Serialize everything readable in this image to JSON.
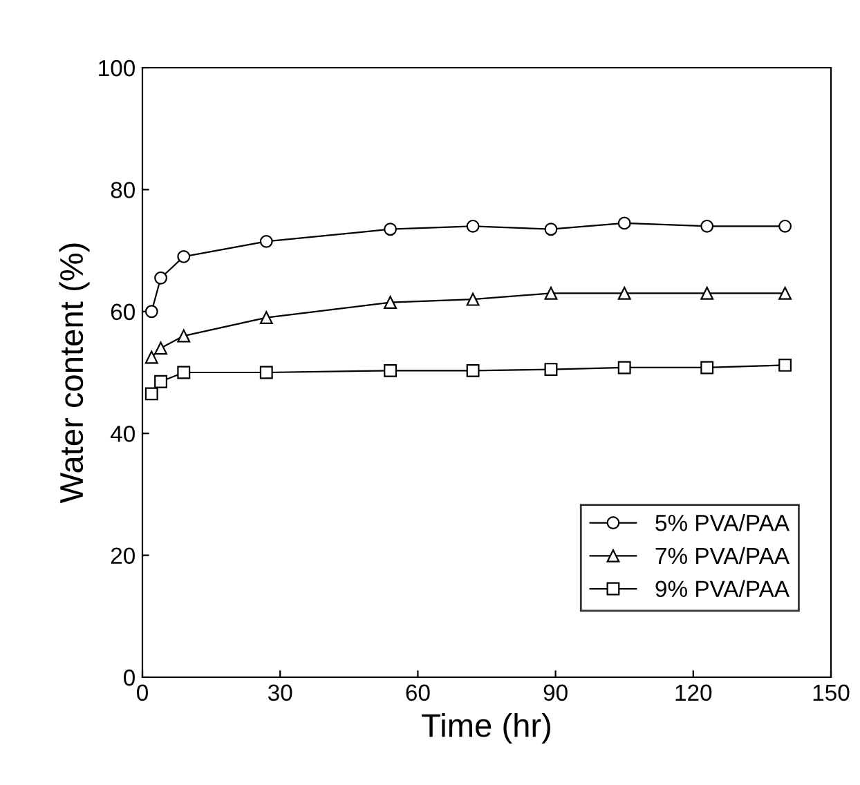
{
  "chart_data": {
    "type": "line",
    "xlabel": "Time (hr)",
    "ylabel": "Water content (%)",
    "x": [
      2,
      4,
      9,
      27,
      54,
      72,
      89,
      105,
      123,
      140
    ],
    "series": [
      {
        "name": "5% PVA/PAA",
        "color": "#000000",
        "marker": "circle",
        "values": [
          60,
          65.5,
          69,
          71.5,
          73.5,
          74,
          73.5,
          74.5,
          74,
          74
        ]
      },
      {
        "name": "7% PVA/PAA",
        "color": "#000000",
        "marker": "triangle",
        "values": [
          52.5,
          54,
          56,
          59,
          61.5,
          62,
          63,
          63,
          63,
          63
        ]
      },
      {
        "name": "9% PVA/PAA",
        "color": "#000000",
        "marker": "square",
        "values": [
          46.5,
          48.5,
          50,
          50,
          50.3,
          50.3,
          50.5,
          50.8,
          50.8,
          51.2
        ]
      }
    ],
    "xlim": [
      0,
      150
    ],
    "xticks": [
      0,
      30,
      60,
      90,
      120,
      150
    ],
    "ylim": [
      0,
      100
    ],
    "yticks": [
      0,
      20,
      40,
      60,
      80,
      100
    ],
    "legend": "bottom right",
    "grid": false
  }
}
